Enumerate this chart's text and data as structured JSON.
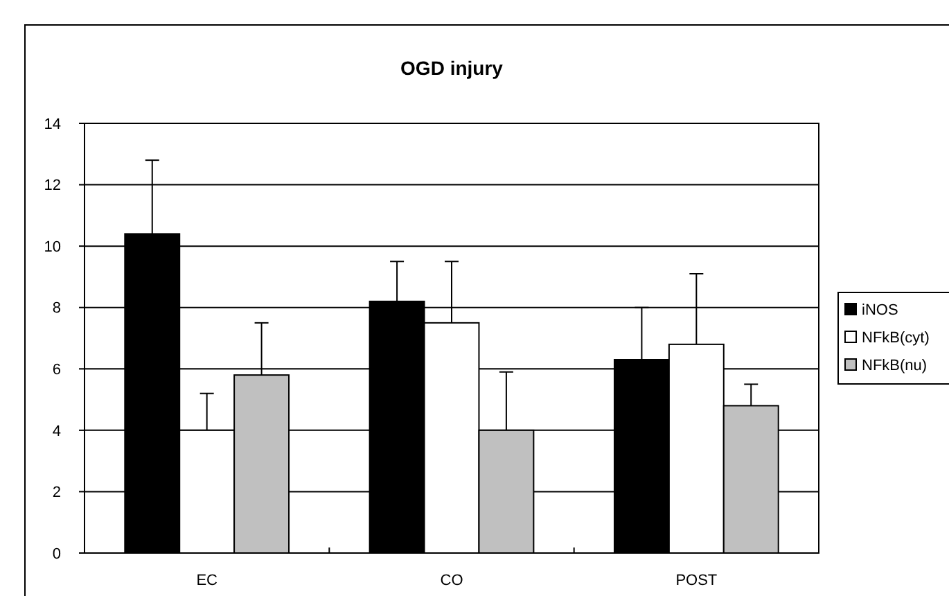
{
  "chart_data": {
    "type": "bar",
    "title": "OGD injury",
    "categories": [
      "EC",
      "CO",
      "POST"
    ],
    "series": [
      {
        "name": "iNOS",
        "color": "#000000",
        "values": [
          10.4,
          8.2,
          6.3
        ],
        "errors": [
          [
            10.4,
            12.8
          ],
          [
            8.2,
            9.5
          ],
          [
            6.3,
            8.0
          ]
        ]
      },
      {
        "name": "NFkB(cyt)",
        "color": "#ffffff",
        "values": [
          4.0,
          7.5,
          6.8
        ],
        "errors": [
          [
            4.0,
            5.2
          ],
          [
            7.5,
            9.5
          ],
          [
            6.8,
            9.1
          ]
        ]
      },
      {
        "name": "NFkB(nu)",
        "color": "#c0c0c0",
        "values": [
          5.8,
          4.0,
          4.8
        ],
        "errors": [
          [
            5.8,
            7.5
          ],
          [
            4.0,
            5.9
          ],
          [
            4.8,
            5.5
          ]
        ]
      }
    ],
    "ylim": [
      0,
      14
    ],
    "yticks": [
      0,
      2,
      4,
      6,
      8,
      10,
      12,
      14
    ],
    "grid": "y",
    "legend": "right"
  }
}
